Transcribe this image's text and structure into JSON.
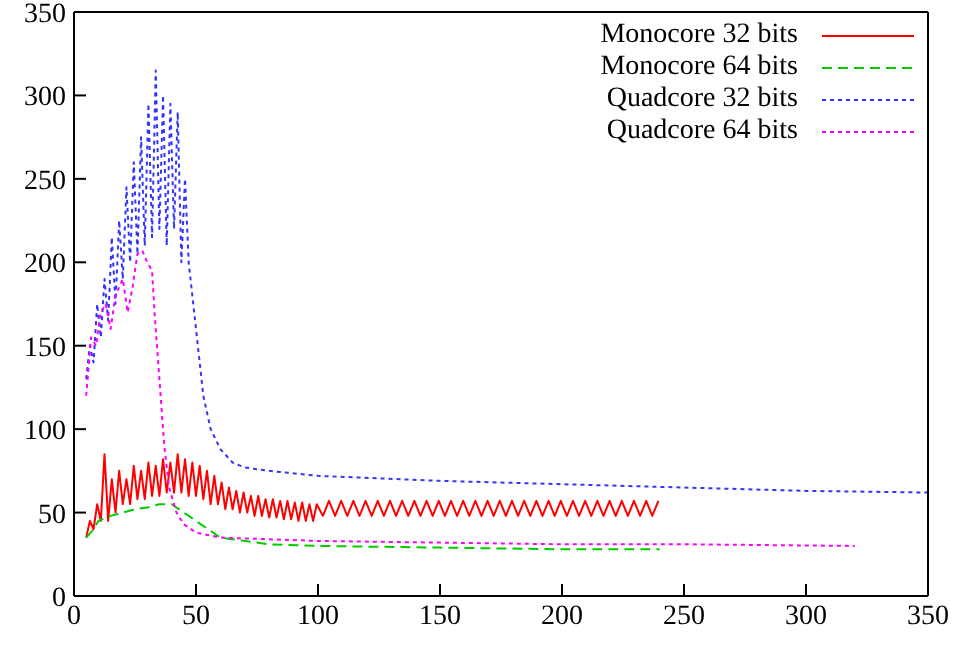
{
  "chart_data": {
    "type": "line",
    "xlim": [
      0,
      350
    ],
    "xticks": [
      0,
      50,
      100,
      150,
      200,
      250,
      300,
      350
    ],
    "ylim": [
      0,
      350
    ],
    "yticks": [
      0,
      50,
      100,
      150,
      200,
      250,
      300,
      350
    ],
    "legend": "top right",
    "marker": "none",
    "series": [
      {
        "name": "Monocore 32 bits",
        "color": "#ff0000",
        "line_style": "solid",
        "x": [
          5,
          6.5,
          8,
          9.5,
          11,
          12.5,
          14,
          15.5,
          17,
          18.5,
          20,
          21.5,
          23,
          24.5,
          26,
          27.5,
          29,
          30.5,
          32,
          33.5,
          35,
          36.5,
          38,
          39.5,
          41,
          42.5,
          44,
          45.5,
          47,
          48.5,
          50,
          51.5,
          53,
          54.5,
          56,
          57.5,
          59,
          60.5,
          62,
          63.5,
          65,
          66.5,
          68,
          69.5,
          71,
          72.5,
          74,
          75.5,
          77,
          78.5,
          80,
          81.5,
          83,
          84.5,
          86,
          87.5,
          89,
          90.5,
          92,
          93.5,
          95,
          96.5,
          98,
          99.5,
          102,
          104.5,
          107,
          109.5,
          112,
          114.5,
          117,
          119.5,
          122,
          124.5,
          127,
          129.5,
          132,
          134.5,
          137,
          139.5,
          142,
          144.5,
          147,
          149.5,
          152,
          154.5,
          157,
          159.5,
          162,
          164.5,
          167,
          169.5,
          172,
          174.5,
          177,
          179.5,
          182,
          184.5,
          187,
          189.5,
          192,
          194.5,
          197,
          199.5,
          202,
          204.5,
          207,
          209.5,
          212,
          214.5,
          217,
          219.5,
          222,
          224.5,
          227,
          229.5,
          232,
          234.5,
          237,
          239.5
        ],
        "values": [
          35,
          45,
          40,
          55,
          45,
          85,
          45,
          70,
          50,
          75,
          55,
          70,
          55,
          78,
          58,
          75,
          58,
          80,
          60,
          78,
          60,
          82,
          62,
          80,
          62,
          85,
          62,
          82,
          60,
          80,
          60,
          78,
          58,
          75,
          55,
          72,
          55,
          68,
          52,
          65,
          52,
          63,
          50,
          62,
          50,
          60,
          48,
          60,
          48,
          58,
          47,
          58,
          47,
          57,
          46,
          57,
          46,
          56,
          45,
          56,
          45,
          55,
          45,
          55,
          48,
          57,
          48,
          57,
          48,
          57,
          48,
          57,
          48,
          57,
          48,
          57,
          48,
          57,
          48,
          57,
          48,
          57,
          48,
          57,
          48,
          57,
          48,
          57,
          48,
          57,
          48,
          57,
          48,
          57,
          48,
          57,
          48,
          57,
          48,
          57,
          48,
          57,
          48,
          57,
          48,
          57,
          48,
          57,
          48,
          57,
          48,
          57,
          48,
          57,
          48,
          57,
          48,
          57,
          48,
          57
        ]
      },
      {
        "name": "Monocore 64 bits",
        "color": "#00cc00",
        "line_style": "dashed",
        "x": [
          5,
          8,
          10,
          15,
          20,
          25,
          30,
          35,
          40,
          45,
          50,
          55,
          60,
          70,
          80,
          100,
          150,
          200,
          240
        ],
        "values": [
          35,
          40,
          45,
          48,
          50,
          52,
          53,
          55,
          55,
          50,
          45,
          40,
          35,
          33,
          31,
          30,
          29,
          28,
          28
        ]
      },
      {
        "name": "Quadcore 32 bits",
        "color": "#3333ff",
        "line_style": "dotted",
        "x": [
          5,
          6.5,
          8,
          9.5,
          11,
          12.5,
          14,
          15.5,
          17,
          18.5,
          20,
          21.5,
          23,
          24.5,
          26,
          27.5,
          29,
          30.5,
          32,
          33.5,
          35,
          36.5,
          38,
          39.5,
          41,
          42.5,
          44,
          45.5,
          47,
          50,
          53,
          56,
          60,
          65,
          70,
          80,
          100,
          150,
          200,
          250,
          300,
          350
        ],
        "values": [
          130,
          150,
          140,
          175,
          155,
          190,
          165,
          215,
          175,
          225,
          190,
          245,
          200,
          260,
          205,
          275,
          210,
          295,
          215,
          315,
          220,
          300,
          210,
          295,
          220,
          290,
          200,
          250,
          200,
          160,
          120,
          100,
          88,
          80,
          77,
          75,
          72,
          69,
          67,
          65,
          63,
          62
        ]
      },
      {
        "name": "Quadcore 64 bits",
        "color": "#ff00ff",
        "line_style": "dotted",
        "x": [
          5,
          7,
          9,
          11,
          13,
          15,
          17,
          20,
          22,
          24,
          26,
          28,
          30,
          32,
          33,
          35,
          37,
          39,
          42,
          45,
          50,
          60,
          80,
          100,
          150,
          200,
          250,
          320
        ],
        "values": [
          120,
          155,
          150,
          170,
          175,
          160,
          180,
          190,
          170,
          185,
          205,
          207,
          200,
          195,
          170,
          130,
          90,
          65,
          50,
          43,
          38,
          35,
          34,
          33,
          32,
          31,
          31,
          30
        ]
      }
    ]
  }
}
